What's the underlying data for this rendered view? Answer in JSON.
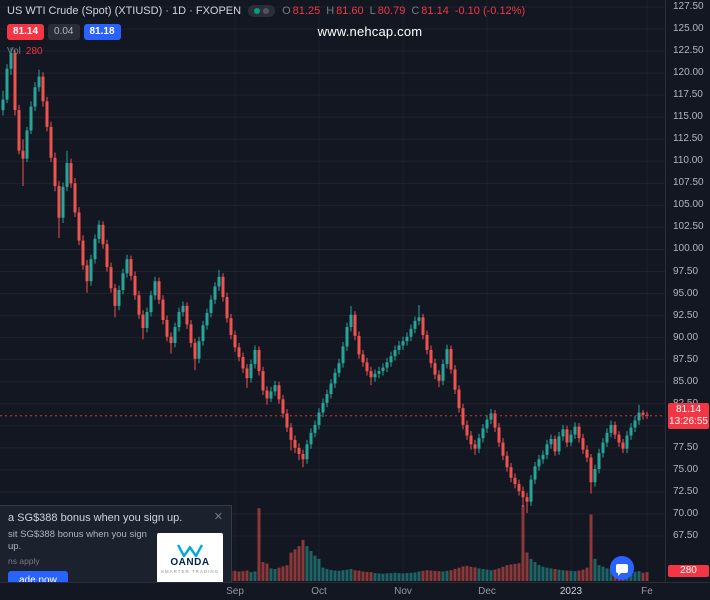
{
  "colors": {
    "background": "#131722",
    "up": "#26a69a",
    "down": "#ef5350",
    "volume_up": "rgba(38,166,154,0.55)",
    "volume_down": "rgba(239,83,80,0.55)",
    "badge_red": "#f23645",
    "badge_blue": "#2962ff",
    "axis_text": "#b2b5be"
  },
  "header": {
    "symbol_title": "US WTI Crude (Spot) (XTIUSD) · 1D · FXOPEN",
    "ohlc": {
      "o_label": "O",
      "o": "81.25",
      "h_label": "H",
      "h": "81.60",
      "l_label": "L",
      "l": "80.79",
      "c_label": "C",
      "c": "81.14",
      "change": "-0.10 (-0.12%)"
    },
    "bid": "81.14",
    "spread": "0.04",
    "ask": "81.18",
    "vol_label": "Vol",
    "vol_value": "280"
  },
  "watermark": "www.nehcap.com",
  "price_badge": {
    "price": "81.14",
    "countdown": "13:26:55"
  },
  "volume_badge": "280",
  "ad": {
    "headline": "a SG$388 bonus when you sign up.",
    "close_glyph": "✕",
    "body": "sit SG$388 bonus when you sign up.",
    "terms": "ns apply",
    "cta": "ade now",
    "brand": "OANDA",
    "brand_tagline": "SMARTER TRADING"
  },
  "chart_data": {
    "type": "candlestick",
    "title": "US WTI Crude (Spot) (XTIUSD) · 1D · FXOPEN",
    "legend_position": "top-left",
    "grid": "faint",
    "last_price": 81.14,
    "current_bar": {
      "open": 81.25,
      "high": 81.6,
      "low": 80.79,
      "close": 81.14,
      "change": -0.1,
      "change_pct": -0.12,
      "volume": 280
    },
    "price_axis": {
      "min": 67.5,
      "max": 127.5,
      "step": 2.5
    },
    "time_axis": [
      {
        "label": "Sep",
        "index": 58
      },
      {
        "label": "Oct",
        "index": 79
      },
      {
        "label": "Nov",
        "index": 100
      },
      {
        "label": "Dec",
        "index": 121
      },
      {
        "label": "2023",
        "index": 142,
        "emphasis": true
      },
      {
        "label": "Fe",
        "index": 161
      }
    ],
    "candles_format": [
      "open",
      "high",
      "low",
      "close",
      "volume"
    ],
    "candles": [
      [
        115.8,
        118.0,
        115.2,
        117.0,
        310
      ],
      [
        117.0,
        121.0,
        116.6,
        120.5,
        340
      ],
      [
        120.5,
        122.9,
        119.8,
        122.3,
        360
      ],
      [
        122.3,
        122.6,
        115.2,
        115.8,
        420
      ],
      [
        115.8,
        116.4,
        110.8,
        111.2,
        450
      ],
      [
        111.2,
        112.5,
        107.2,
        110.3,
        390
      ],
      [
        110.3,
        113.9,
        109.9,
        113.5,
        280
      ],
      [
        113.5,
        116.8,
        113.1,
        116.2,
        260
      ],
      [
        116.2,
        119.0,
        115.7,
        118.4,
        250
      ],
      [
        118.4,
        120.4,
        117.9,
        119.6,
        270
      ],
      [
        119.6,
        120.1,
        116.2,
        116.8,
        300
      ],
      [
        116.8,
        117.3,
        113.4,
        113.9,
        320
      ],
      [
        113.9,
        114.5,
        109.9,
        110.4,
        350
      ],
      [
        110.4,
        111.0,
        106.6,
        107.2,
        330
      ],
      [
        107.2,
        107.8,
        101.3,
        103.6,
        480
      ],
      [
        103.6,
        107.6,
        103.0,
        107.1,
        310
      ],
      [
        107.1,
        111.2,
        106.6,
        109.8,
        290
      ],
      [
        109.8,
        110.3,
        107.0,
        107.5,
        240
      ],
      [
        107.5,
        108.1,
        103.7,
        104.2,
        280
      ],
      [
        104.2,
        104.8,
        100.5,
        101.0,
        300
      ],
      [
        101.0,
        101.6,
        97.7,
        98.2,
        330
      ],
      [
        98.2,
        98.8,
        95.1,
        96.4,
        360
      ],
      [
        96.4,
        99.4,
        95.9,
        98.9,
        250
      ],
      [
        98.9,
        101.7,
        98.4,
        101.2,
        240
      ],
      [
        101.2,
        103.3,
        100.7,
        102.8,
        230
      ],
      [
        102.8,
        103.2,
        100.1,
        100.6,
        210
      ],
      [
        100.6,
        101.1,
        97.5,
        98.0,
        240
      ],
      [
        98.0,
        98.5,
        95.1,
        95.6,
        260
      ],
      [
        95.6,
        96.1,
        92.3,
        93.6,
        290
      ],
      [
        93.6,
        95.9,
        93.1,
        95.4,
        220
      ],
      [
        95.4,
        97.8,
        94.9,
        97.3,
        210
      ],
      [
        97.3,
        99.4,
        96.8,
        98.9,
        200
      ],
      [
        98.9,
        99.3,
        96.5,
        97.0,
        220
      ],
      [
        97.0,
        97.5,
        94.3,
        94.8,
        240
      ],
      [
        94.8,
        95.3,
        92.1,
        92.6,
        260
      ],
      [
        92.6,
        93.1,
        89.8,
        91.1,
        300
      ],
      [
        91.1,
        93.4,
        90.6,
        92.9,
        230
      ],
      [
        92.9,
        95.3,
        92.4,
        94.8,
        220
      ],
      [
        94.8,
        96.9,
        94.3,
        96.4,
        210
      ],
      [
        96.4,
        96.8,
        93.8,
        94.3,
        230
      ],
      [
        94.3,
        94.8,
        91.5,
        92.0,
        250
      ],
      [
        92.0,
        92.5,
        89.6,
        90.1,
        270
      ],
      [
        90.1,
        90.6,
        88.2,
        89.4,
        280
      ],
      [
        89.4,
        91.7,
        88.9,
        91.2,
        220
      ],
      [
        91.2,
        93.4,
        90.7,
        92.9,
        210
      ],
      [
        92.9,
        94.1,
        92.4,
        93.6,
        200
      ],
      [
        93.6,
        94.0,
        91.0,
        91.5,
        230
      ],
      [
        91.5,
        92.0,
        88.9,
        89.4,
        250
      ],
      [
        89.4,
        89.9,
        86.3,
        87.6,
        290
      ],
      [
        87.6,
        90.1,
        87.1,
        89.6,
        240
      ],
      [
        89.6,
        91.9,
        89.1,
        91.4,
        230
      ],
      [
        91.4,
        93.3,
        90.9,
        92.8,
        220
      ],
      [
        92.8,
        94.8,
        92.3,
        94.3,
        210
      ],
      [
        94.3,
        96.3,
        93.8,
        95.8,
        220
      ],
      [
        95.8,
        97.7,
        95.3,
        96.9,
        260
      ],
      [
        96.9,
        97.3,
        94.1,
        94.6,
        280
      ],
      [
        94.6,
        95.1,
        91.7,
        92.2,
        300
      ],
      [
        92.2,
        92.7,
        89.8,
        90.3,
        310
      ],
      [
        90.3,
        90.8,
        88.4,
        88.9,
        320
      ],
      [
        88.9,
        89.4,
        87.3,
        87.8,
        300
      ],
      [
        87.8,
        88.3,
        86.0,
        86.5,
        310
      ],
      [
        86.5,
        87.0,
        84.3,
        85.4,
        330
      ],
      [
        85.4,
        87.5,
        84.9,
        87.0,
        280
      ],
      [
        87.0,
        89.1,
        86.5,
        88.6,
        300
      ],
      [
        88.6,
        89.0,
        85.7,
        86.2,
        2300
      ],
      [
        86.2,
        86.7,
        83.5,
        84.0,
        600
      ],
      [
        84.0,
        84.5,
        82.4,
        83.1,
        550
      ],
      [
        83.1,
        84.4,
        82.7,
        83.9,
        400
      ],
      [
        83.9,
        85.1,
        83.4,
        84.6,
        380
      ],
      [
        84.6,
        85.0,
        82.5,
        83.0,
        420
      ],
      [
        83.0,
        83.5,
        80.9,
        81.4,
        460
      ],
      [
        81.4,
        81.9,
        79.3,
        79.8,
        500
      ],
      [
        79.8,
        80.3,
        77.2,
        78.4,
        900
      ],
      [
        78.4,
        78.9,
        76.9,
        77.5,
        1000
      ],
      [
        77.5,
        78.0,
        76.1,
        76.8,
        1100
      ],
      [
        76.8,
        77.3,
        75.3,
        76.2,
        1300
      ],
      [
        76.2,
        78.4,
        75.7,
        77.9,
        1100
      ],
      [
        77.9,
        79.7,
        77.4,
        79.2,
        950
      ],
      [
        79.2,
        80.6,
        78.7,
        80.1,
        800
      ],
      [
        80.1,
        82.0,
        79.6,
        81.5,
        700
      ],
      [
        81.5,
        83.1,
        81.0,
        82.6,
        420
      ],
      [
        82.6,
        84.1,
        82.1,
        83.6,
        380
      ],
      [
        83.6,
        85.3,
        83.1,
        84.8,
        350
      ],
      [
        84.8,
        86.5,
        84.3,
        86.0,
        330
      ],
      [
        86.0,
        87.6,
        85.5,
        87.1,
        320
      ],
      [
        87.1,
        89.5,
        86.6,
        89.0,
        340
      ],
      [
        89.0,
        91.7,
        88.5,
        91.2,
        360
      ],
      [
        91.2,
        93.6,
        90.7,
        92.6,
        380
      ],
      [
        92.6,
        93.0,
        89.7,
        90.2,
        340
      ],
      [
        90.2,
        90.7,
        87.6,
        88.1,
        330
      ],
      [
        88.1,
        88.6,
        86.7,
        87.2,
        300
      ],
      [
        87.2,
        87.7,
        85.7,
        86.2,
        290
      ],
      [
        86.2,
        86.7,
        84.6,
        85.5,
        280
      ],
      [
        85.5,
        86.4,
        85.0,
        85.9,
        250
      ],
      [
        85.9,
        86.7,
        85.4,
        86.2,
        240
      ],
      [
        86.2,
        87.1,
        85.7,
        86.6,
        230
      ],
      [
        86.6,
        87.7,
        86.1,
        87.2,
        240
      ],
      [
        87.2,
        88.4,
        86.7,
        87.9,
        250
      ],
      [
        87.9,
        89.1,
        87.4,
        88.6,
        260
      ],
      [
        88.6,
        89.6,
        88.1,
        89.1,
        250
      ],
      [
        89.1,
        90.1,
        88.6,
        89.6,
        240
      ],
      [
        89.6,
        90.6,
        89.1,
        90.1,
        250
      ],
      [
        90.1,
        91.5,
        89.6,
        91.0,
        260
      ],
      [
        91.0,
        92.4,
        90.5,
        91.9,
        270
      ],
      [
        91.9,
        93.7,
        91.4,
        92.3,
        300
      ],
      [
        92.3,
        92.7,
        89.8,
        90.3,
        320
      ],
      [
        90.3,
        90.8,
        88.1,
        88.6,
        340
      ],
      [
        88.6,
        89.1,
        86.6,
        87.1,
        330
      ],
      [
        87.1,
        87.6,
        85.3,
        85.8,
        320
      ],
      [
        85.8,
        86.3,
        84.4,
        85.1,
        310
      ],
      [
        85.1,
        87.5,
        84.6,
        87.0,
        300
      ],
      [
        87.0,
        89.2,
        86.5,
        88.7,
        320
      ],
      [
        88.7,
        89.1,
        85.9,
        86.4,
        340
      ],
      [
        86.4,
        86.9,
        83.6,
        84.1,
        380
      ],
      [
        84.1,
        84.6,
        81.5,
        82.0,
        420
      ],
      [
        82.0,
        82.5,
        79.6,
        80.1,
        460
      ],
      [
        80.1,
        80.6,
        78.4,
        78.9,
        480
      ],
      [
        78.9,
        79.4,
        77.3,
        77.9,
        450
      ],
      [
        77.9,
        78.4,
        76.7,
        77.4,
        430
      ],
      [
        77.4,
        79.1,
        76.9,
        78.6,
        400
      ],
      [
        78.6,
        80.2,
        78.1,
        79.7,
        380
      ],
      [
        79.7,
        81.2,
        79.2,
        80.7,
        360
      ],
      [
        80.7,
        81.9,
        80.2,
        81.4,
        340
      ],
      [
        81.4,
        81.8,
        79.3,
        79.8,
        360
      ],
      [
        79.8,
        80.3,
        77.6,
        78.1,
        400
      ],
      [
        78.1,
        78.6,
        76.1,
        76.6,
        450
      ],
      [
        76.6,
        77.1,
        74.8,
        75.3,
        500
      ],
      [
        75.3,
        75.8,
        73.6,
        74.1,
        520
      ],
      [
        74.1,
        74.6,
        72.9,
        73.4,
        540
      ],
      [
        73.4,
        73.9,
        72.1,
        72.6,
        560
      ],
      [
        72.6,
        73.1,
        70.8,
        71.9,
        2400
      ],
      [
        71.9,
        72.4,
        70.1,
        71.4,
        900
      ],
      [
        71.4,
        74.4,
        70.9,
        73.9,
        700
      ],
      [
        73.9,
        75.9,
        73.4,
        75.4,
        600
      ],
      [
        75.4,
        76.7,
        74.9,
        76.2,
        500
      ],
      [
        76.2,
        77.2,
        75.7,
        76.7,
        450
      ],
      [
        76.7,
        78.4,
        76.2,
        77.9,
        420
      ],
      [
        77.9,
        79.0,
        77.4,
        78.5,
        400
      ],
      [
        78.5,
        78.9,
        76.6,
        77.1,
        380
      ],
      [
        77.1,
        79.3,
        76.7,
        78.8,
        360
      ],
      [
        78.8,
        80.1,
        78.3,
        79.6,
        340
      ],
      [
        79.6,
        80.0,
        77.6,
        78.1,
        330
      ],
      [
        78.1,
        79.5,
        77.7,
        79.0,
        320
      ],
      [
        79.0,
        80.4,
        78.5,
        79.9,
        310
      ],
      [
        79.9,
        80.3,
        78.1,
        78.6,
        330
      ],
      [
        78.6,
        79.1,
        76.8,
        77.3,
        360
      ],
      [
        77.3,
        77.8,
        75.9,
        76.4,
        420
      ],
      [
        76.4,
        76.8,
        72.3,
        73.6,
        2100
      ],
      [
        73.6,
        75.6,
        73.1,
        75.1,
        700
      ],
      [
        75.1,
        77.4,
        74.6,
        76.9,
        500
      ],
      [
        76.9,
        78.6,
        76.4,
        78.1,
        450
      ],
      [
        78.1,
        79.7,
        77.6,
        79.2,
        400
      ],
      [
        79.2,
        80.6,
        78.7,
        80.1,
        380
      ],
      [
        80.1,
        80.5,
        78.5,
        79.0,
        350
      ],
      [
        79.0,
        79.4,
        77.6,
        78.1,
        330
      ],
      [
        78.1,
        78.5,
        76.9,
        77.4,
        320
      ],
      [
        77.4,
        79.4,
        76.9,
        78.9,
        310
      ],
      [
        78.9,
        80.3,
        78.4,
        79.8,
        300
      ],
      [
        79.8,
        81.1,
        79.3,
        80.6,
        290
      ],
      [
        80.6,
        82.4,
        80.1,
        81.5,
        310
      ],
      [
        81.5,
        81.8,
        80.7,
        81.24,
        260
      ],
      [
        81.25,
        81.6,
        80.79,
        81.14,
        280
      ]
    ]
  }
}
